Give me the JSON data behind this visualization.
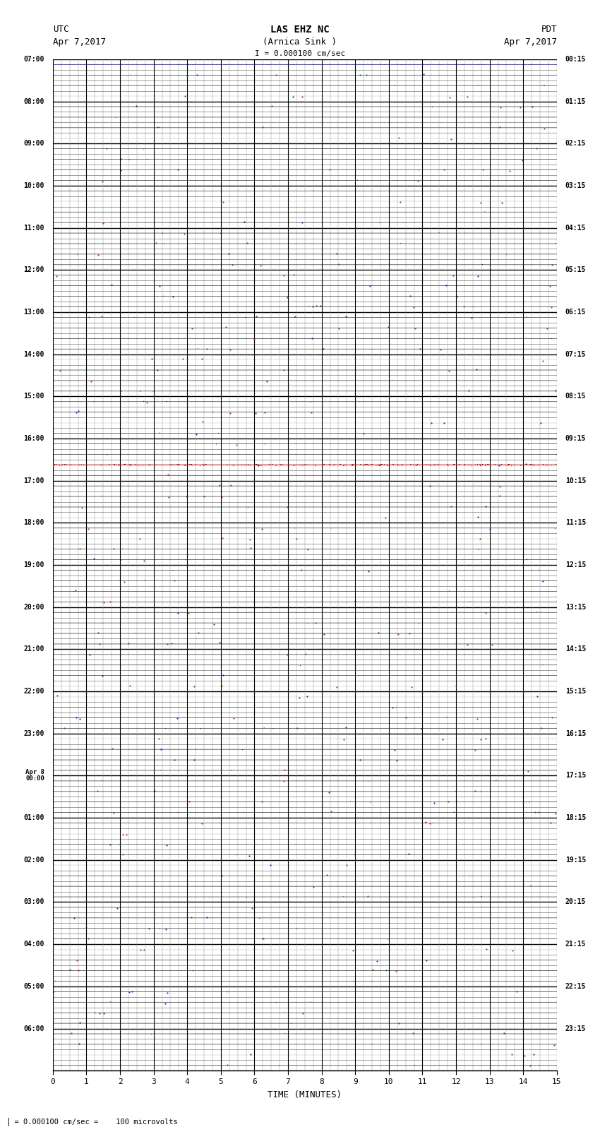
{
  "title_line1": "LAS EHZ NC",
  "title_line2": "(Arnica Sink )",
  "title_scale": "I = 0.000100 cm/sec",
  "left_label1": "UTC",
  "left_label2": "Apr 7,2017",
  "right_label1": "PDT",
  "right_label2": "Apr 7,2017",
  "xlabel": "TIME (MINUTES)",
  "bottom_annotation": "= 0.000100 cm/sec =    100 microvolts",
  "xmin": 0,
  "xmax": 15,
  "background_color": "#ffffff",
  "grid_color_major": "#000000",
  "grid_color_minor": "#888888",
  "trace_color": "#000000",
  "red_trace_color": "#cc0000",
  "blue_trace_color": "#0000cc",
  "utc_hour_labels": [
    "07:00",
    "08:00",
    "09:00",
    "10:00",
    "11:00",
    "12:00",
    "13:00",
    "14:00",
    "15:00",
    "16:00",
    "17:00",
    "18:00",
    "19:00",
    "20:00",
    "21:00",
    "22:00",
    "23:00",
    "Apr 8\n00:00",
    "01:00",
    "02:00",
    "03:00",
    "04:00",
    "05:00",
    "06:00"
  ],
  "pdt_hour_labels": [
    "00:15",
    "01:15",
    "02:15",
    "03:15",
    "04:15",
    "05:15",
    "06:15",
    "07:15",
    "08:15",
    "09:15",
    "10:15",
    "11:15",
    "12:15",
    "13:15",
    "14:15",
    "15:15",
    "16:15",
    "17:15",
    "18:15",
    "19:15",
    "20:15",
    "21:15",
    "22:15",
    "23:15"
  ],
  "num_hours": 24,
  "rows_per_hour": 4,
  "red_hour_index": 14,
  "last_row_blue": true
}
